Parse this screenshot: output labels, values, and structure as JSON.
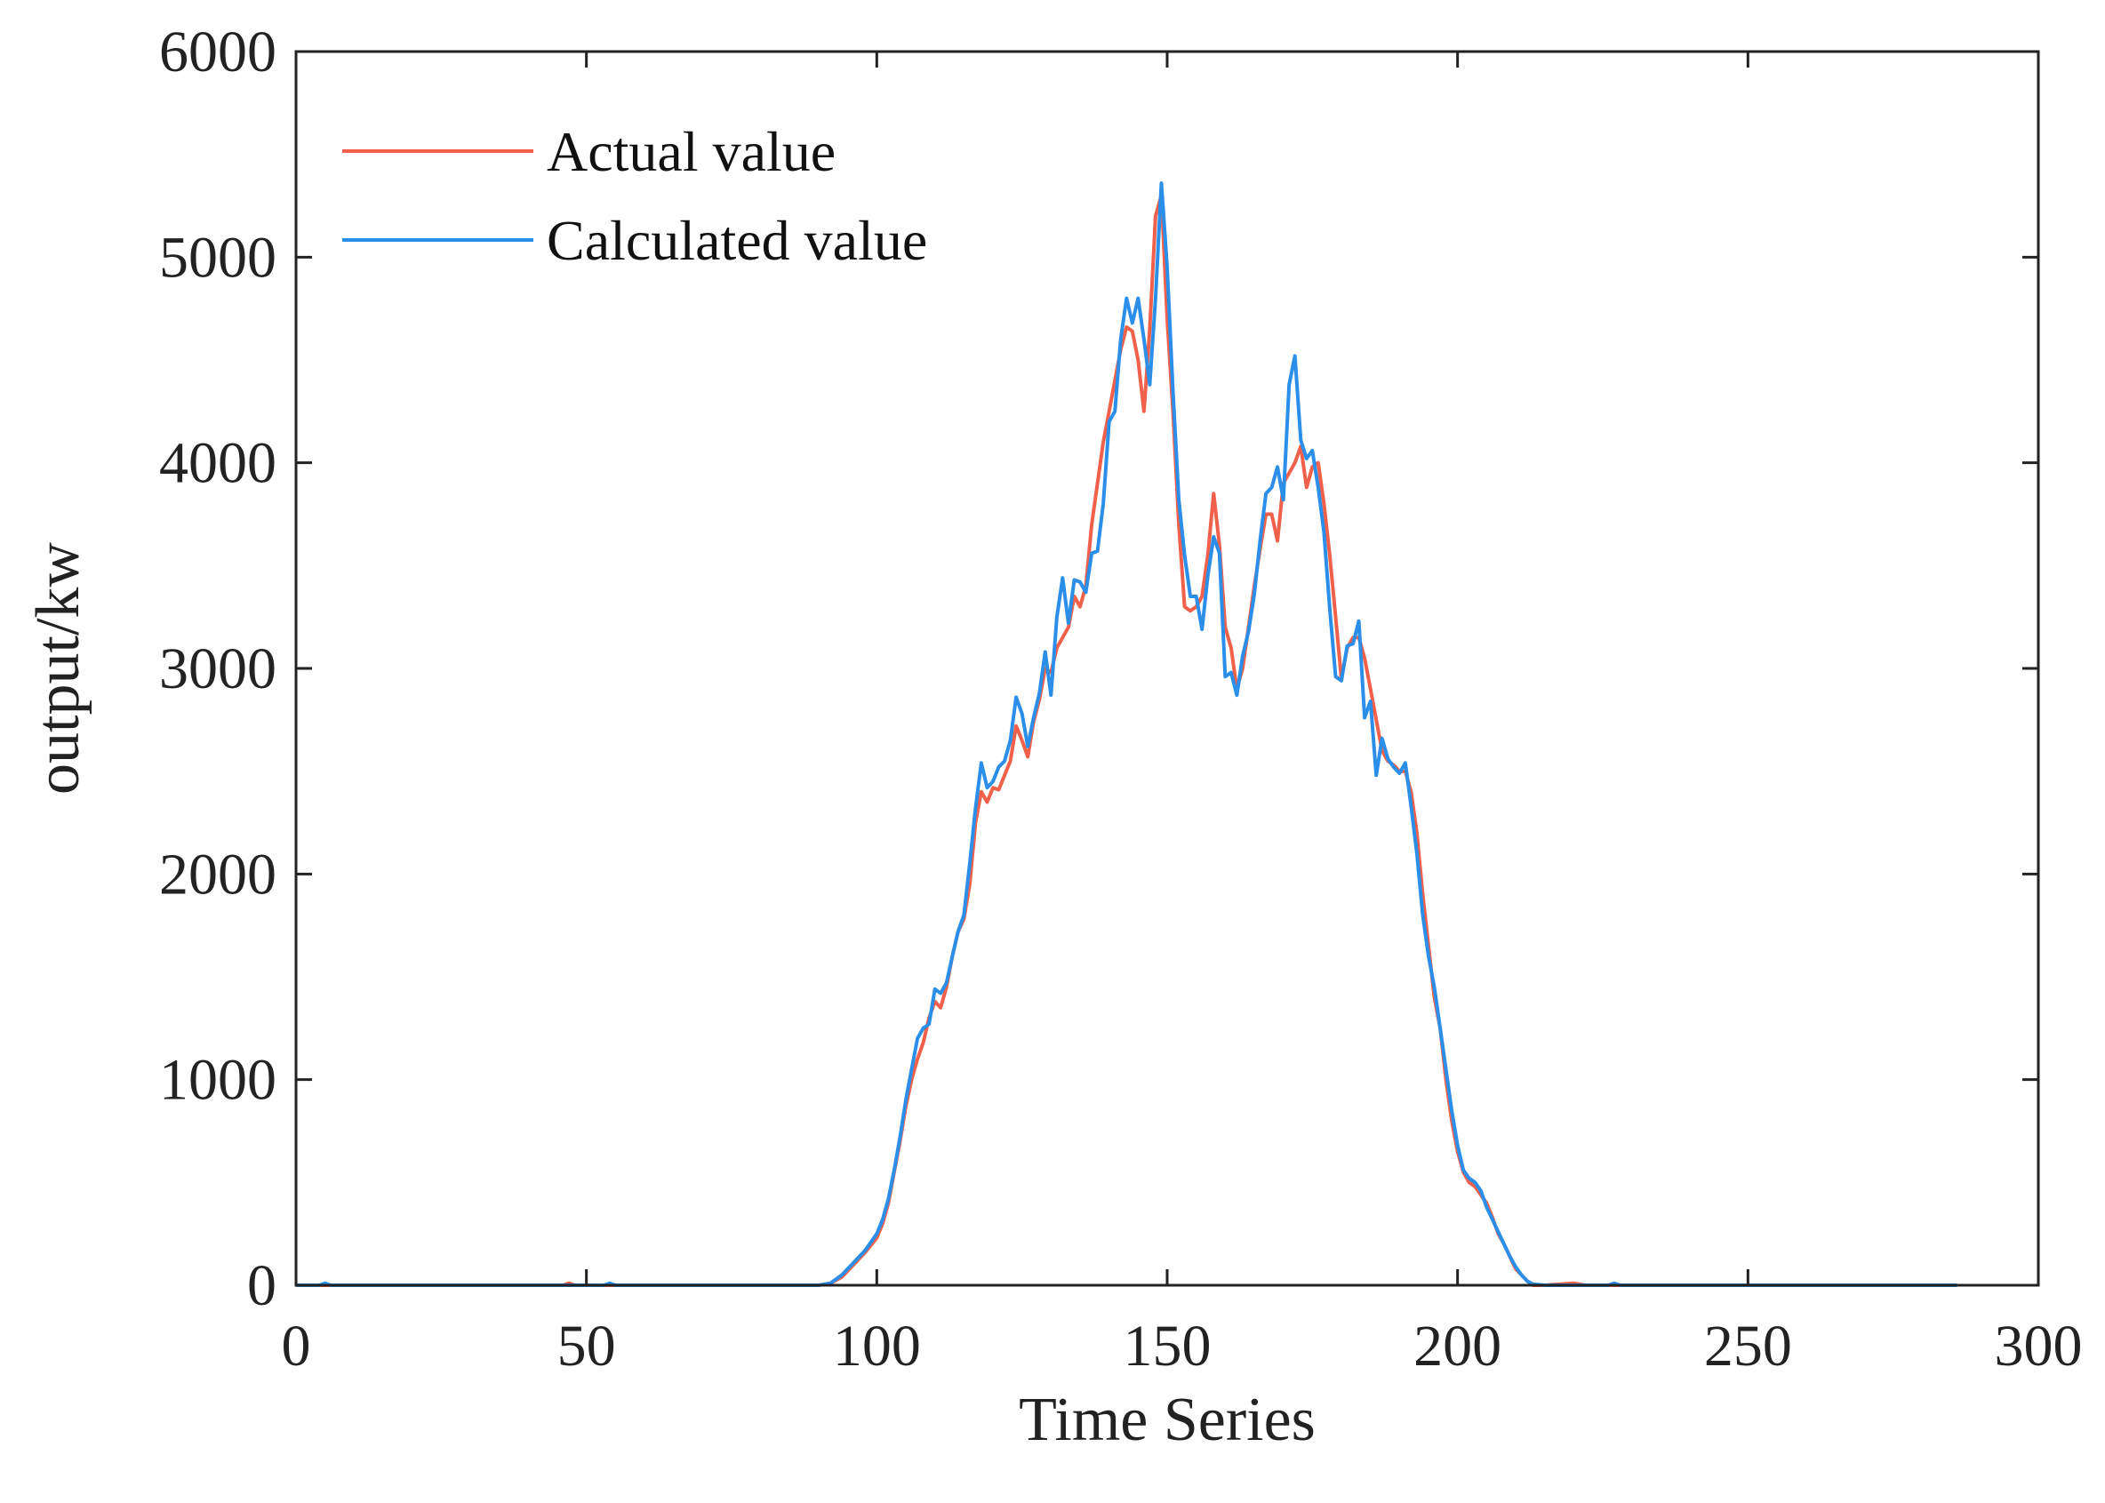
{
  "colors": {
    "actual": "#f0604a",
    "calculated": "#2b8fea",
    "axis": "#222222"
  },
  "chart_data": {
    "type": "line",
    "title": "",
    "xlabel": "Time Series",
    "ylabel": "output/kw",
    "xlim": [
      0,
      300
    ],
    "ylim": [
      0,
      6000
    ],
    "xticks": [
      0,
      50,
      100,
      150,
      200,
      250,
      300
    ],
    "yticks": [
      0,
      1000,
      2000,
      3000,
      4000,
      5000,
      6000
    ],
    "grid": false,
    "legend_position": "top-left",
    "series": [
      {
        "name": "Actual value",
        "color": "#f0604a",
        "points": [
          [
            0,
            0
          ],
          [
            46,
            0
          ],
          [
            47,
            10
          ],
          [
            48,
            0
          ],
          [
            90,
            0
          ],
          [
            92,
            10
          ],
          [
            94,
            40
          ],
          [
            96,
            100
          ],
          [
            98,
            160
          ],
          [
            100,
            230
          ],
          [
            101,
            300
          ],
          [
            102,
            400
          ],
          [
            103,
            550
          ],
          [
            104,
            700
          ],
          [
            105,
            870
          ],
          [
            106,
            1000
          ],
          [
            107,
            1100
          ],
          [
            108,
            1180
          ],
          [
            109,
            1300
          ],
          [
            110,
            1380
          ],
          [
            111,
            1350
          ],
          [
            112,
            1450
          ],
          [
            113,
            1600
          ],
          [
            114,
            1720
          ],
          [
            115,
            1780
          ],
          [
            116,
            1950
          ],
          [
            117,
            2250
          ],
          [
            118,
            2400
          ],
          [
            119,
            2350
          ],
          [
            120,
            2420
          ],
          [
            121,
            2410
          ],
          [
            122,
            2480
          ],
          [
            123,
            2550
          ],
          [
            124,
            2720
          ],
          [
            125,
            2650
          ],
          [
            126,
            2570
          ],
          [
            127,
            2740
          ],
          [
            128,
            2850
          ],
          [
            129,
            3000
          ],
          [
            130,
            2980
          ],
          [
            131,
            3100
          ],
          [
            132,
            3150
          ],
          [
            133,
            3200
          ],
          [
            134,
            3350
          ],
          [
            135,
            3300
          ],
          [
            136,
            3400
          ],
          [
            137,
            3700
          ],
          [
            138,
            3900
          ],
          [
            139,
            4100
          ],
          [
            140,
            4250
          ],
          [
            141,
            4400
          ],
          [
            142,
            4550
          ],
          [
            143,
            4660
          ],
          [
            144,
            4640
          ],
          [
            145,
            4500
          ],
          [
            146,
            4250
          ],
          [
            147,
            4650
          ],
          [
            148,
            5200
          ],
          [
            149,
            5300
          ],
          [
            150,
            4700
          ],
          [
            151,
            4250
          ],
          [
            152,
            3700
          ],
          [
            153,
            3300
          ],
          [
            154,
            3280
          ],
          [
            155,
            3300
          ],
          [
            156,
            3350
          ],
          [
            157,
            3550
          ],
          [
            158,
            3850
          ],
          [
            159,
            3600
          ],
          [
            160,
            3200
          ],
          [
            161,
            3100
          ],
          [
            162,
            2900
          ],
          [
            163,
            3000
          ],
          [
            164,
            3200
          ],
          [
            165,
            3400
          ],
          [
            166,
            3580
          ],
          [
            167,
            3750
          ],
          [
            168,
            3750
          ],
          [
            169,
            3620
          ],
          [
            170,
            3900
          ],
          [
            171,
            3950
          ],
          [
            172,
            4000
          ],
          [
            173,
            4080
          ],
          [
            174,
            3880
          ],
          [
            175,
            3980
          ],
          [
            176,
            4000
          ],
          [
            177,
            3800
          ],
          [
            178,
            3550
          ],
          [
            179,
            3250
          ],
          [
            180,
            2950
          ],
          [
            181,
            3100
          ],
          [
            182,
            3150
          ],
          [
            183,
            3150
          ],
          [
            184,
            3050
          ],
          [
            185,
            2900
          ],
          [
            186,
            2750
          ],
          [
            187,
            2600
          ],
          [
            188,
            2550
          ],
          [
            189,
            2530
          ],
          [
            190,
            2500
          ],
          [
            191,
            2500
          ],
          [
            192,
            2400
          ],
          [
            193,
            2200
          ],
          [
            194,
            1900
          ],
          [
            195,
            1650
          ],
          [
            196,
            1400
          ],
          [
            197,
            1250
          ],
          [
            198,
            1000
          ],
          [
            199,
            800
          ],
          [
            200,
            650
          ],
          [
            201,
            550
          ],
          [
            202,
            500
          ],
          [
            203,
            480
          ],
          [
            204,
            440
          ],
          [
            205,
            400
          ],
          [
            206,
            330
          ],
          [
            207,
            250
          ],
          [
            208,
            200
          ],
          [
            209,
            140
          ],
          [
            210,
            80
          ],
          [
            211,
            50
          ],
          [
            212,
            20
          ],
          [
            213,
            0
          ],
          [
            215,
            0
          ],
          [
            220,
            10
          ],
          [
            222,
            0
          ],
          [
            286,
            0
          ]
        ]
      },
      {
        "name": "Calculated value",
        "color": "#2b8fea",
        "points": [
          [
            0,
            0
          ],
          [
            4,
            0
          ],
          [
            5,
            10
          ],
          [
            6,
            0
          ],
          [
            53,
            0
          ],
          [
            54,
            10
          ],
          [
            55,
            0
          ],
          [
            90,
            0
          ],
          [
            92,
            10
          ],
          [
            94,
            50
          ],
          [
            96,
            110
          ],
          [
            98,
            170
          ],
          [
            100,
            250
          ],
          [
            101,
            320
          ],
          [
            102,
            420
          ],
          [
            103,
            560
          ],
          [
            104,
            720
          ],
          [
            105,
            900
          ],
          [
            106,
            1050
          ],
          [
            107,
            1200
          ],
          [
            108,
            1250
          ],
          [
            109,
            1270
          ],
          [
            110,
            1440
          ],
          [
            111,
            1420
          ],
          [
            112,
            1470
          ],
          [
            113,
            1600
          ],
          [
            114,
            1720
          ],
          [
            115,
            1800
          ],
          [
            116,
            2050
          ],
          [
            117,
            2320
          ],
          [
            118,
            2540
          ],
          [
            119,
            2420
          ],
          [
            120,
            2450
          ],
          [
            121,
            2520
          ],
          [
            122,
            2550
          ],
          [
            123,
            2650
          ],
          [
            124,
            2860
          ],
          [
            125,
            2780
          ],
          [
            126,
            2620
          ],
          [
            127,
            2760
          ],
          [
            128,
            2880
          ],
          [
            129,
            3080
          ],
          [
            130,
            2870
          ],
          [
            131,
            3250
          ],
          [
            132,
            3440
          ],
          [
            133,
            3220
          ],
          [
            134,
            3430
          ],
          [
            135,
            3420
          ],
          [
            136,
            3370
          ],
          [
            137,
            3560
          ],
          [
            138,
            3570
          ],
          [
            139,
            3800
          ],
          [
            140,
            4200
          ],
          [
            141,
            4250
          ],
          [
            142,
            4600
          ],
          [
            143,
            4800
          ],
          [
            144,
            4680
          ],
          [
            145,
            4800
          ],
          [
            146,
            4600
          ],
          [
            147,
            4380
          ],
          [
            148,
            4800
          ],
          [
            149,
            5360
          ],
          [
            150,
            4950
          ],
          [
            151,
            4350
          ],
          [
            152,
            3820
          ],
          [
            153,
            3550
          ],
          [
            154,
            3350
          ],
          [
            155,
            3350
          ],
          [
            156,
            3190
          ],
          [
            157,
            3450
          ],
          [
            158,
            3640
          ],
          [
            159,
            3560
          ],
          [
            160,
            2960
          ],
          [
            161,
            2980
          ],
          [
            162,
            2870
          ],
          [
            163,
            3060
          ],
          [
            164,
            3180
          ],
          [
            165,
            3360
          ],
          [
            166,
            3620
          ],
          [
            167,
            3850
          ],
          [
            168,
            3880
          ],
          [
            169,
            3980
          ],
          [
            170,
            3820
          ],
          [
            171,
            4380
          ],
          [
            172,
            4520
          ],
          [
            173,
            4110
          ],
          [
            174,
            4020
          ],
          [
            175,
            4060
          ],
          [
            176,
            3880
          ],
          [
            177,
            3660
          ],
          [
            178,
            3290
          ],
          [
            179,
            2960
          ],
          [
            180,
            2940
          ],
          [
            181,
            3110
          ],
          [
            182,
            3120
          ],
          [
            183,
            3230
          ],
          [
            184,
            2760
          ],
          [
            185,
            2840
          ],
          [
            186,
            2480
          ],
          [
            187,
            2660
          ],
          [
            188,
            2560
          ],
          [
            189,
            2520
          ],
          [
            190,
            2490
          ],
          [
            191,
            2540
          ],
          [
            192,
            2330
          ],
          [
            193,
            2100
          ],
          [
            194,
            1800
          ],
          [
            195,
            1600
          ],
          [
            196,
            1450
          ],
          [
            197,
            1250
          ],
          [
            198,
            1050
          ],
          [
            199,
            850
          ],
          [
            200,
            680
          ],
          [
            201,
            560
          ],
          [
            202,
            520
          ],
          [
            203,
            500
          ],
          [
            204,
            460
          ],
          [
            205,
            380
          ],
          [
            206,
            320
          ],
          [
            207,
            260
          ],
          [
            208,
            200
          ],
          [
            209,
            140
          ],
          [
            210,
            90
          ],
          [
            211,
            50
          ],
          [
            212,
            20
          ],
          [
            213,
            5
          ],
          [
            215,
            0
          ],
          [
            226,
            0
          ],
          [
            227,
            10
          ],
          [
            228,
            0
          ],
          [
            286,
            0
          ]
        ]
      }
    ]
  }
}
